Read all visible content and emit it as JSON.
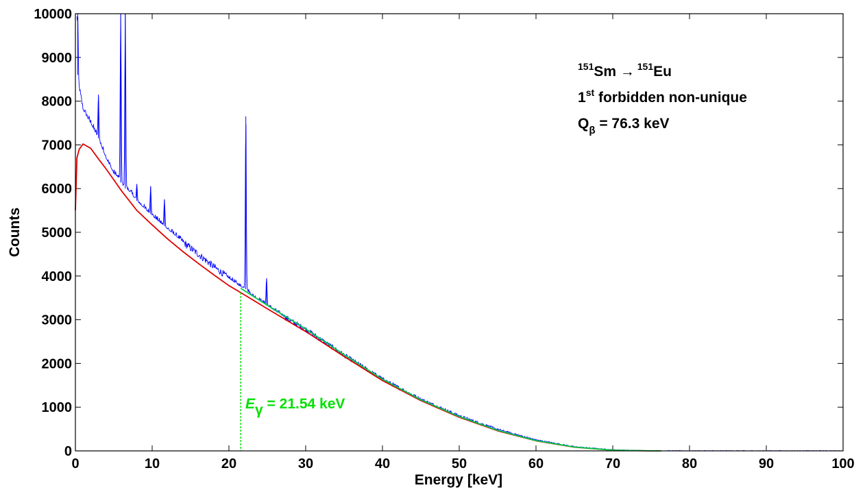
{
  "chart_data": {
    "type": "line",
    "title": "",
    "xlabel": "Energy [keV]",
    "ylabel": "Counts",
    "xlim": [
      0,
      100
    ],
    "ylim": [
      0,
      10000
    ],
    "x_ticks": [
      "0",
      "10",
      "20",
      "30",
      "40",
      "50",
      "60",
      "70",
      "80",
      "90",
      "100"
    ],
    "y_ticks": [
      "0",
      "1000",
      "2000",
      "3000",
      "4000",
      "5000",
      "6000",
      "7000",
      "8000",
      "9000",
      "10000"
    ],
    "grid": false,
    "legend": "none",
    "annotations": {
      "line1": {
        "sup1": "151",
        "a": "Sm ",
        "arrow": "→",
        "sup2": " 151",
        "b": "Eu"
      },
      "line2": {
        "a": "1",
        "sup": "st",
        "b": " forbidden non-unique"
      },
      "line3": {
        "a": "Q",
        "sub": "β",
        "b": " = 76.3 keV"
      },
      "gamma": {
        "a": "E",
        "sub": "γ",
        "b": " = 21.54 keV"
      }
    },
    "series": [
      {
        "color": "#0000ff",
        "style": "measured spectrum",
        "x": [
          0.2,
          0.3,
          0.5,
          1,
          2,
          3,
          4,
          5,
          5.6,
          6,
          6.5,
          7,
          8,
          10,
          12,
          14,
          16,
          18,
          20,
          21.5,
          22,
          22.2,
          23,
          25,
          28,
          30,
          35,
          40,
          45,
          50,
          55,
          60,
          65,
          70,
          75,
          76.3,
          80,
          90,
          100
        ],
        "values": [
          9900,
          8600,
          8300,
          7800,
          7500,
          7150,
          6700,
          6350,
          6250,
          6100,
          6000,
          5950,
          5720,
          5380,
          5080,
          4780,
          4500,
          4220,
          3950,
          3760,
          3720,
          3700,
          3560,
          3320,
          2980,
          2780,
          2190,
          1640,
          1180,
          800,
          490,
          250,
          95,
          25,
          5,
          0,
          0,
          0,
          0
        ],
        "peaks": [
          {
            "x": 0.3,
            "y": 10000
          },
          {
            "x": 3.0,
            "y": 8150
          },
          {
            "x": 5.9,
            "y": 10000
          },
          {
            "x": 6.5,
            "y": 10000
          },
          {
            "x": 8.0,
            "y": 6100
          },
          {
            "x": 9.8,
            "y": 6050
          },
          {
            "x": 11.6,
            "y": 5750
          },
          {
            "x": 22.2,
            "y": 7650
          },
          {
            "x": 24.9,
            "y": 3950
          }
        ]
      },
      {
        "color": "#e00000",
        "style": "fit",
        "x": [
          0,
          0.2,
          0.5,
          1,
          2,
          3,
          4,
          5,
          6,
          8,
          10,
          12,
          14,
          16,
          18,
          20,
          21.54
        ],
        "values": [
          5500,
          6700,
          6900,
          7020,
          6920,
          6680,
          6450,
          6200,
          5950,
          5500,
          5170,
          4850,
          4560,
          4290,
          4030,
          3780,
          3620
        ]
      },
      {
        "color": "#e00000",
        "style": "fit (beta spectrum)",
        "x": [
          21.54,
          25,
          30,
          35,
          40,
          45,
          50,
          55,
          60,
          65,
          70,
          75,
          76.3
        ],
        "values": [
          3620,
          3250,
          2730,
          2160,
          1610,
          1150,
          770,
          460,
          230,
          85,
          15,
          0,
          0
        ]
      },
      {
        "color": "#00cc44",
        "style": "fit (beta + gamma)",
        "x": [
          21.54,
          25,
          30,
          35,
          40,
          45,
          50,
          55,
          60,
          65,
          70,
          75,
          76.3
        ],
        "values": [
          3720,
          3330,
          2790,
          2200,
          1640,
          1170,
          785,
          470,
          235,
          88,
          16,
          1,
          0
        ]
      }
    ],
    "gamma_marker": {
      "x": 21.54,
      "y_top": 3620,
      "color": "#00dd00"
    }
  }
}
